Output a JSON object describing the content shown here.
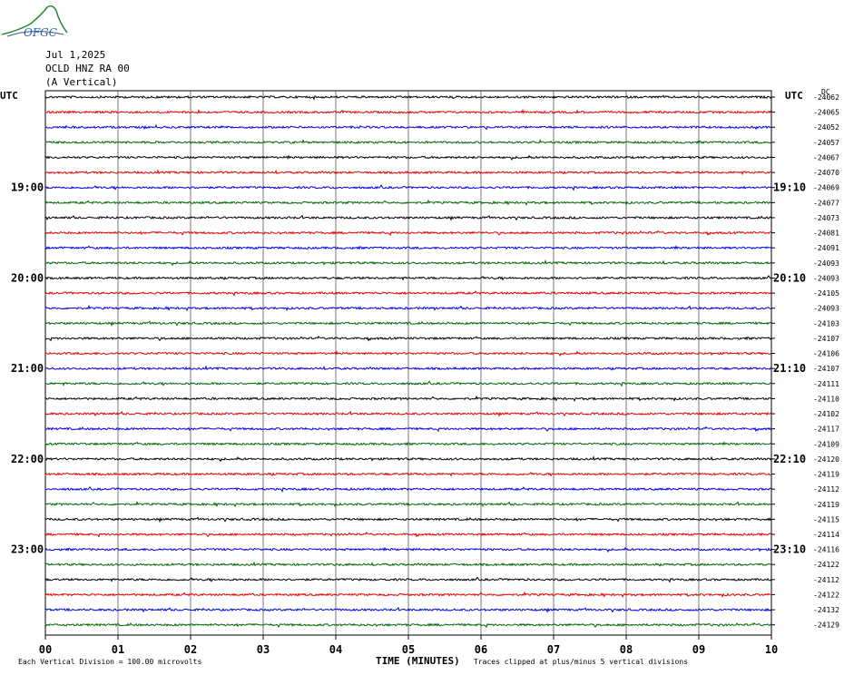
{
  "header": {
    "logo_text": "OFGC",
    "date": "Jul 1,2025",
    "station": "OCLD HNZ RA 00",
    "component": "(A Vertical)"
  },
  "left_utc_label": "UTC",
  "right_utc_label": "UTC",
  "dc_label": "DC",
  "footer": {
    "scale_note": "Each Vertical Division = 100.00 microvolts",
    "xlabel": "TIME (MINUTES)",
    "clip_note": "Traces clipped at plus/minus 5 vertical divisions"
  },
  "chart_data": {
    "type": "line",
    "title": "OCLD HNZ RA 00 (A Vertical)",
    "xlabel": "TIME (MINUTES)",
    "x_ticks": [
      "00",
      "01",
      "02",
      "03",
      "04",
      "05",
      "06",
      "07",
      "08",
      "09",
      "10"
    ],
    "xlim": [
      0,
      10
    ],
    "left_time_labels": [
      {
        "row": 6,
        "label": "19:00"
      },
      {
        "row": 12,
        "label": "20:00"
      },
      {
        "row": 18,
        "label": "21:00"
      },
      {
        "row": 24,
        "label": "22:00"
      },
      {
        "row": 30,
        "label": "23:00"
      }
    ],
    "right_time_labels": [
      {
        "row": 6,
        "label": "19:10"
      },
      {
        "row": 12,
        "label": "20:10"
      },
      {
        "row": 18,
        "label": "21:10"
      },
      {
        "row": 24,
        "label": "22:10"
      },
      {
        "row": 30,
        "label": "23:10"
      }
    ],
    "trace_colors": [
      "#000000",
      "#e00000",
      "#0000e0",
      "#006400"
    ],
    "dc_offsets": [
      -24062,
      -24065,
      -24052,
      -24057,
      -24067,
      -24070,
      -24069,
      -24077,
      -24073,
      -24081,
      -24091,
      -24093,
      -24093,
      -24105,
      -24093,
      -24103,
      -24107,
      -24106,
      -24107,
      -24111,
      -24110,
      -24102,
      -24117,
      -24109,
      -24120,
      -24119,
      -24112,
      -24119,
      -24115,
      -24114,
      -24116,
      -24122,
      -24112,
      -24122,
      -24132,
      -24129
    ],
    "grid": true
  }
}
